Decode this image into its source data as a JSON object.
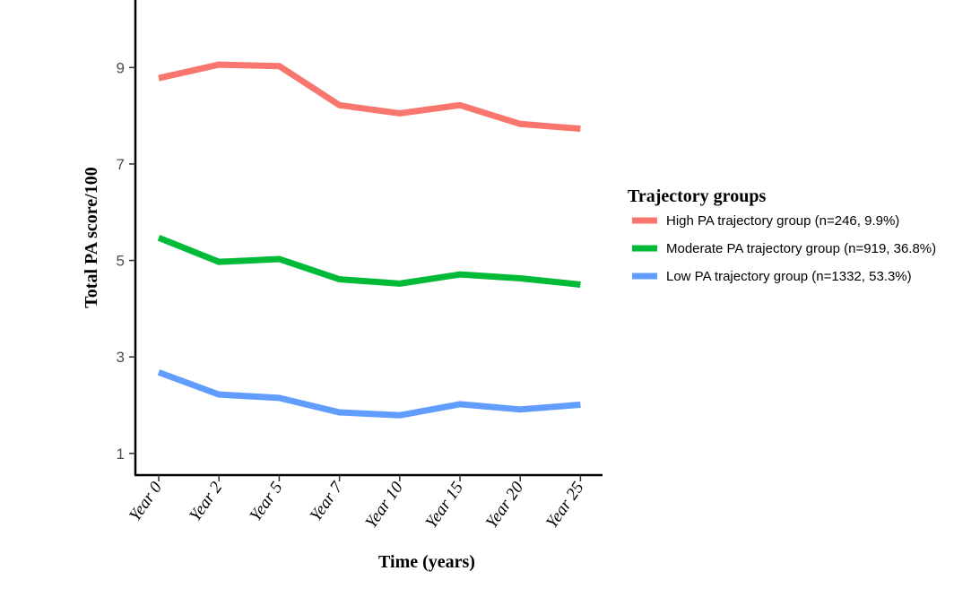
{
  "chart_data": {
    "type": "line",
    "categories": [
      "Year 0",
      "Year 2",
      "Year 5",
      "Year 7",
      "Year 10",
      "Year 15",
      "Year 20",
      "Year 25"
    ],
    "series": [
      {
        "name": "High PA trajectory group (n=246, 9.9%)",
        "color": "#f8766d",
        "values": [
          8.78,
          9.06,
          9.03,
          8.22,
          8.05,
          8.22,
          7.83,
          7.73
        ]
      },
      {
        "name": "Moderate PA trajectory group (n=919, 36.8%)",
        "color": "#00ba38",
        "values": [
          5.47,
          4.97,
          5.03,
          4.61,
          4.52,
          4.71,
          4.63,
          4.5
        ]
      },
      {
        "name": "Low PA trajectory group (n=1332, 53.3%)",
        "color": "#619cff",
        "values": [
          2.68,
          2.22,
          2.15,
          1.85,
          1.79,
          2.02,
          1.91,
          2.01
        ]
      }
    ],
    "yticks": [
      1,
      3,
      5,
      7,
      9
    ],
    "ylim": [
      0.55,
      10.4
    ],
    "xlabel": "Time (years)",
    "ylabel": "Total PA score/100",
    "legend_title": "Trajectory groups",
    "legend_position": "right",
    "grid": false
  }
}
